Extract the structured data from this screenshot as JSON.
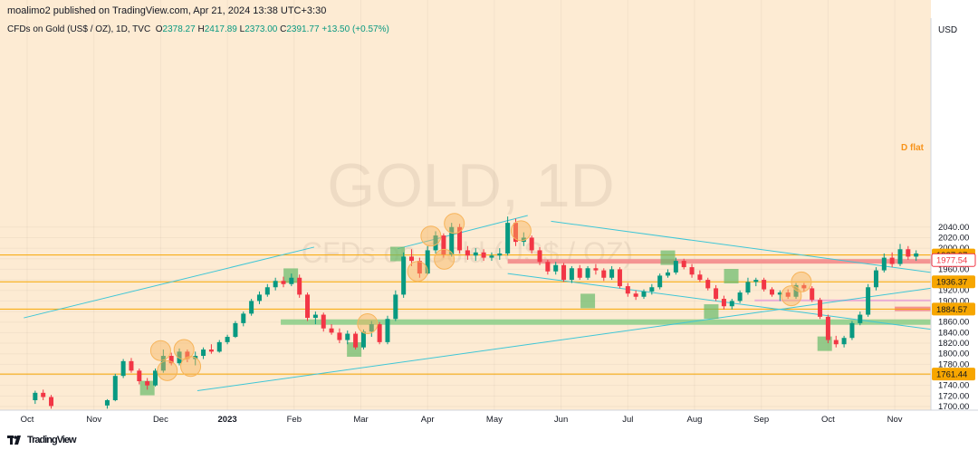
{
  "header": {
    "publisher_line": "moalimo2 published on TradingView.com, Apr 21, 2024 13:38 UTC+3:30",
    "symbol_line": "CFDs on Gold (US$ / OZ), 1D, TVC",
    "ohlc": [
      {
        "key": "O",
        "val": "2378.27"
      },
      {
        "key": "H",
        "val": "2417.89"
      },
      {
        "key": "L",
        "val": "2373.00"
      },
      {
        "key": "C",
        "val": "2391.77"
      }
    ],
    "change": "+13.50 (+0.57%)"
  },
  "currency": "USD",
  "watermark": {
    "line1": "GOLD, 1D",
    "line2": "CFDs on Gold (US$ / OZ)"
  },
  "annotation": "D flat",
  "footer": {
    "brand": "TradingView",
    "logo": "tradingview-logo-icon"
  },
  "colors": {
    "background": "#fdebd3",
    "up": "#089981",
    "down": "#f23645",
    "hline": "#f7a600",
    "channel": "#3fc6d6",
    "zone_red": "#f38b8b",
    "zone_green": "#8fcf8c",
    "marker_orange": "#f7b45a",
    "marker_green": "#66bb6a"
  },
  "chart_data": {
    "type": "candlestick",
    "x_axis_labels": [
      "Oct",
      "Nov",
      "Dec",
      "2023",
      "Feb",
      "Mar",
      "Apr",
      "May",
      "Jun",
      "Jul",
      "Aug",
      "Sep",
      "Oct",
      "Nov"
    ],
    "y_ticks": [
      1700,
      1720,
      1740,
      1760,
      1780,
      1800,
      1820,
      1840,
      1860,
      1880,
      1900,
      1920,
      1940,
      1960,
      1980,
      2000,
      2020,
      2040
    ],
    "ylim": [
      1696,
      2064
    ],
    "grid": true,
    "price_tags": [
      {
        "value": 1987.07,
        "label": "1987.07",
        "style": "orange"
      },
      {
        "value": 1977.54,
        "label": "1977.54",
        "style": "red"
      },
      {
        "value": 1936.37,
        "label": "1936.37",
        "style": "orange"
      },
      {
        "value": 1884.57,
        "label": "1884.57",
        "style": "orange"
      },
      {
        "value": 1761.44,
        "label": "1761.44",
        "style": "orange"
      }
    ],
    "horizontal_lines": [
      1987.07,
      1936.37,
      1884.57,
      1761.44
    ],
    "zones": [
      {
        "from_month": 7.2,
        "to_month": 18.4,
        "value": 1975,
        "color": "red"
      },
      {
        "from_month": 13.0,
        "to_month": 18.4,
        "value": 1885,
        "color": "red"
      },
      {
        "from_month": 10.9,
        "to_month": 17.4,
        "value": 1901,
        "color": "pink"
      },
      {
        "from_month": 3.8,
        "to_month": 18.4,
        "value": 1860,
        "color": "green"
      }
    ],
    "trendlines": [
      {
        "from": [
          -0.05,
          1868
        ],
        "to": [
          4.3,
          2002
        ]
      },
      {
        "from": [
          2.55,
          1730
        ],
        "to": [
          18.0,
          2003
        ]
      },
      {
        "from": [
          5.55,
          1999
        ],
        "to": [
          7.5,
          2062
        ]
      },
      {
        "from": [
          7.85,
          2051
        ],
        "to": [
          17.3,
          1890
        ]
      },
      {
        "from": [
          7.2,
          1952
        ],
        "to": [
          15.6,
          1812
        ]
      }
    ],
    "orange_markers": [
      [
        2.0,
        1806
      ],
      [
        2.35,
        1808
      ],
      [
        2.1,
        1768
      ],
      [
        2.45,
        1776
      ],
      [
        5.1,
        1857
      ],
      [
        6.05,
        2023
      ],
      [
        6.4,
        2047
      ],
      [
        5.85,
        1956
      ],
      [
        6.25,
        1979
      ],
      [
        7.4,
        2033
      ],
      [
        11.6,
        1936
      ],
      [
        11.45,
        1910
      ]
    ],
    "green_markers": [
      [
        1.8,
        1735
      ],
      [
        5.55,
        1989
      ],
      [
        3.95,
        1948
      ],
      [
        4.9,
        1808
      ],
      [
        8.4,
        1900
      ],
      [
        9.6,
        1982
      ],
      [
        10.55,
        1947
      ],
      [
        10.25,
        1880
      ],
      [
        11.95,
        1819
      ]
    ],
    "candles": [
      {
        "t": 0.12,
        "o": 1712,
        "h": 1730,
        "l": 1705,
        "c": 1726
      },
      {
        "t": 0.24,
        "o": 1726,
        "h": 1732,
        "l": 1712,
        "c": 1718
      },
      {
        "t": 0.36,
        "o": 1718,
        "h": 1722,
        "l": 1696,
        "c": 1701
      },
      {
        "t": 1.2,
        "o": 1702,
        "h": 1714,
        "l": 1696,
        "c": 1712
      },
      {
        "t": 1.32,
        "o": 1712,
        "h": 1762,
        "l": 1710,
        "c": 1758
      },
      {
        "t": 1.44,
        "o": 1758,
        "h": 1790,
        "l": 1754,
        "c": 1786
      },
      {
        "t": 1.56,
        "o": 1786,
        "h": 1792,
        "l": 1764,
        "c": 1768
      },
      {
        "t": 1.68,
        "o": 1768,
        "h": 1772,
        "l": 1742,
        "c": 1748
      },
      {
        "t": 1.8,
        "o": 1748,
        "h": 1754,
        "l": 1732,
        "c": 1740
      },
      {
        "t": 1.92,
        "o": 1740,
        "h": 1772,
        "l": 1738,
        "c": 1768
      },
      {
        "t": 2.04,
        "o": 1768,
        "h": 1808,
        "l": 1764,
        "c": 1796
      },
      {
        "t": 2.16,
        "o": 1796,
        "h": 1802,
        "l": 1778,
        "c": 1782
      },
      {
        "t": 2.28,
        "o": 1782,
        "h": 1810,
        "l": 1778,
        "c": 1804
      },
      {
        "t": 2.4,
        "o": 1804,
        "h": 1808,
        "l": 1784,
        "c": 1790
      },
      {
        "t": 2.52,
        "o": 1790,
        "h": 1804,
        "l": 1778,
        "c": 1796
      },
      {
        "t": 2.64,
        "o": 1796,
        "h": 1812,
        "l": 1790,
        "c": 1808
      },
      {
        "t": 2.76,
        "o": 1808,
        "h": 1818,
        "l": 1800,
        "c": 1804
      },
      {
        "t": 2.88,
        "o": 1804,
        "h": 1826,
        "l": 1802,
        "c": 1822
      },
      {
        "t": 3.0,
        "o": 1822,
        "h": 1836,
        "l": 1818,
        "c": 1832
      },
      {
        "t": 3.12,
        "o": 1832,
        "h": 1862,
        "l": 1830,
        "c": 1858
      },
      {
        "t": 3.24,
        "o": 1858,
        "h": 1880,
        "l": 1852,
        "c": 1876
      },
      {
        "t": 3.36,
        "o": 1876,
        "h": 1904,
        "l": 1872,
        "c": 1900
      },
      {
        "t": 3.48,
        "o": 1900,
        "h": 1918,
        "l": 1894,
        "c": 1912
      },
      {
        "t": 3.6,
        "o": 1912,
        "h": 1932,
        "l": 1908,
        "c": 1926
      },
      {
        "t": 3.72,
        "o": 1926,
        "h": 1944,
        "l": 1920,
        "c": 1938
      },
      {
        "t": 3.84,
        "o": 1938,
        "h": 1946,
        "l": 1926,
        "c": 1932
      },
      {
        "t": 3.96,
        "o": 1932,
        "h": 1952,
        "l": 1928,
        "c": 1944
      },
      {
        "t": 4.08,
        "o": 1944,
        "h": 1950,
        "l": 1906,
        "c": 1912
      },
      {
        "t": 4.2,
        "o": 1912,
        "h": 1916,
        "l": 1862,
        "c": 1868
      },
      {
        "t": 4.32,
        "o": 1868,
        "h": 1880,
        "l": 1856,
        "c": 1874
      },
      {
        "t": 4.44,
        "o": 1874,
        "h": 1878,
        "l": 1842,
        "c": 1848
      },
      {
        "t": 4.56,
        "o": 1848,
        "h": 1856,
        "l": 1836,
        "c": 1840
      },
      {
        "t": 4.68,
        "o": 1840,
        "h": 1848,
        "l": 1820,
        "c": 1826
      },
      {
        "t": 4.8,
        "o": 1826,
        "h": 1844,
        "l": 1818,
        "c": 1838
      },
      {
        "t": 4.92,
        "o": 1838,
        "h": 1842,
        "l": 1808,
        "c": 1812
      },
      {
        "t": 5.04,
        "o": 1812,
        "h": 1846,
        "l": 1808,
        "c": 1842
      },
      {
        "t": 5.16,
        "o": 1842,
        "h": 1862,
        "l": 1832,
        "c": 1856
      },
      {
        "t": 5.28,
        "o": 1856,
        "h": 1860,
        "l": 1818,
        "c": 1822
      },
      {
        "t": 5.4,
        "o": 1822,
        "h": 1872,
        "l": 1818,
        "c": 1866
      },
      {
        "t": 5.52,
        "o": 1866,
        "h": 1920,
        "l": 1862,
        "c": 1912
      },
      {
        "t": 5.64,
        "o": 1912,
        "h": 1992,
        "l": 1906,
        "c": 1984
      },
      {
        "t": 5.76,
        "o": 1984,
        "h": 1998,
        "l": 1966,
        "c": 1976
      },
      {
        "t": 5.88,
        "o": 1976,
        "h": 1982,
        "l": 1944,
        "c": 1952
      },
      {
        "t": 6.0,
        "o": 1952,
        "h": 2004,
        "l": 1950,
        "c": 1996
      },
      {
        "t": 6.12,
        "o": 1996,
        "h": 2032,
        "l": 1990,
        "c": 2024
      },
      {
        "t": 6.24,
        "o": 2024,
        "h": 2028,
        "l": 1982,
        "c": 1988
      },
      {
        "t": 6.36,
        "o": 1988,
        "h": 2048,
        "l": 1984,
        "c": 2040
      },
      {
        "t": 6.48,
        "o": 2040,
        "h": 2046,
        "l": 1990,
        "c": 1996
      },
      {
        "t": 6.6,
        "o": 1996,
        "h": 2004,
        "l": 1978,
        "c": 1986
      },
      {
        "t": 6.72,
        "o": 1986,
        "h": 2000,
        "l": 1976,
        "c": 1992
      },
      {
        "t": 6.84,
        "o": 1992,
        "h": 1998,
        "l": 1976,
        "c": 1982
      },
      {
        "t": 6.96,
        "o": 1982,
        "h": 1992,
        "l": 1976,
        "c": 1986
      },
      {
        "t": 7.08,
        "o": 1986,
        "h": 2000,
        "l": 1978,
        "c": 1990
      },
      {
        "t": 7.2,
        "o": 1990,
        "h": 2060,
        "l": 1986,
        "c": 2048
      },
      {
        "t": 7.32,
        "o": 2048,
        "h": 2056,
        "l": 2004,
        "c": 2012
      },
      {
        "t": 7.44,
        "o": 2012,
        "h": 2030,
        "l": 2004,
        "c": 2020
      },
      {
        "t": 7.56,
        "o": 2020,
        "h": 2024,
        "l": 1990,
        "c": 1996
      },
      {
        "t": 7.68,
        "o": 1996,
        "h": 2002,
        "l": 1968,
        "c": 1974
      },
      {
        "t": 7.8,
        "o": 1974,
        "h": 1978,
        "l": 1950,
        "c": 1956
      },
      {
        "t": 7.92,
        "o": 1956,
        "h": 1974,
        "l": 1950,
        "c": 1968
      },
      {
        "t": 8.04,
        "o": 1968,
        "h": 1972,
        "l": 1936,
        "c": 1940
      },
      {
        "t": 8.16,
        "o": 1940,
        "h": 1966,
        "l": 1934,
        "c": 1962
      },
      {
        "t": 8.28,
        "o": 1962,
        "h": 1968,
        "l": 1940,
        "c": 1944
      },
      {
        "t": 8.4,
        "o": 1944,
        "h": 1966,
        "l": 1940,
        "c": 1962
      },
      {
        "t": 8.52,
        "o": 1962,
        "h": 1970,
        "l": 1950,
        "c": 1958
      },
      {
        "t": 8.64,
        "o": 1958,
        "h": 1962,
        "l": 1938,
        "c": 1944
      },
      {
        "t": 8.76,
        "o": 1944,
        "h": 1966,
        "l": 1940,
        "c": 1960
      },
      {
        "t": 8.88,
        "o": 1960,
        "h": 1964,
        "l": 1924,
        "c": 1928
      },
      {
        "t": 9.0,
        "o": 1928,
        "h": 1934,
        "l": 1908,
        "c": 1914
      },
      {
        "t": 9.12,
        "o": 1914,
        "h": 1920,
        "l": 1902,
        "c": 1908
      },
      {
        "t": 9.24,
        "o": 1908,
        "h": 1922,
        "l": 1904,
        "c": 1918
      },
      {
        "t": 9.36,
        "o": 1918,
        "h": 1932,
        "l": 1912,
        "c": 1926
      },
      {
        "t": 9.48,
        "o": 1926,
        "h": 1952,
        "l": 1922,
        "c": 1948
      },
      {
        "t": 9.6,
        "o": 1948,
        "h": 1960,
        "l": 1944,
        "c": 1954
      },
      {
        "t": 9.72,
        "o": 1954,
        "h": 1982,
        "l": 1950,
        "c": 1976
      },
      {
        "t": 9.84,
        "o": 1976,
        "h": 1980,
        "l": 1960,
        "c": 1964
      },
      {
        "t": 9.96,
        "o": 1964,
        "h": 1970,
        "l": 1944,
        "c": 1950
      },
      {
        "t": 10.08,
        "o": 1950,
        "h": 1958,
        "l": 1936,
        "c": 1940
      },
      {
        "t": 10.2,
        "o": 1940,
        "h": 1944,
        "l": 1920,
        "c": 1924
      },
      {
        "t": 10.32,
        "o": 1924,
        "h": 1930,
        "l": 1900,
        "c": 1904
      },
      {
        "t": 10.44,
        "o": 1904,
        "h": 1910,
        "l": 1884,
        "c": 1890
      },
      {
        "t": 10.56,
        "o": 1890,
        "h": 1904,
        "l": 1884,
        "c": 1900
      },
      {
        "t": 10.68,
        "o": 1900,
        "h": 1920,
        "l": 1896,
        "c": 1916
      },
      {
        "t": 10.8,
        "o": 1916,
        "h": 1944,
        "l": 1912,
        "c": 1936
      },
      {
        "t": 10.92,
        "o": 1936,
        "h": 1944,
        "l": 1928,
        "c": 1940
      },
      {
        "t": 11.04,
        "o": 1940,
        "h": 1944,
        "l": 1918,
        "c": 1922
      },
      {
        "t": 11.16,
        "o": 1922,
        "h": 1926,
        "l": 1908,
        "c": 1912
      },
      {
        "t": 11.28,
        "o": 1912,
        "h": 1920,
        "l": 1900,
        "c": 1916
      },
      {
        "t": 11.4,
        "o": 1916,
        "h": 1922,
        "l": 1904,
        "c": 1908
      },
      {
        "t": 11.52,
        "o": 1908,
        "h": 1934,
        "l": 1904,
        "c": 1930
      },
      {
        "t": 11.64,
        "o": 1930,
        "h": 1934,
        "l": 1918,
        "c": 1924
      },
      {
        "t": 11.76,
        "o": 1924,
        "h": 1928,
        "l": 1898,
        "c": 1902
      },
      {
        "t": 11.88,
        "o": 1902,
        "h": 1906,
        "l": 1866,
        "c": 1870
      },
      {
        "t": 12.0,
        "o": 1870,
        "h": 1874,
        "l": 1820,
        "c": 1826
      },
      {
        "t": 12.12,
        "o": 1826,
        "h": 1834,
        "l": 1812,
        "c": 1818
      },
      {
        "t": 12.24,
        "o": 1818,
        "h": 1834,
        "l": 1812,
        "c": 1830
      },
      {
        "t": 12.36,
        "o": 1830,
        "h": 1862,
        "l": 1826,
        "c": 1858
      },
      {
        "t": 12.48,
        "o": 1858,
        "h": 1880,
        "l": 1854,
        "c": 1874
      },
      {
        "t": 12.6,
        "o": 1874,
        "h": 1932,
        "l": 1870,
        "c": 1926
      },
      {
        "t": 12.72,
        "o": 1926,
        "h": 1964,
        "l": 1920,
        "c": 1958
      },
      {
        "t": 12.84,
        "o": 1958,
        "h": 1990,
        "l": 1954,
        "c": 1982
      },
      {
        "t": 12.96,
        "o": 1982,
        "h": 1992,
        "l": 1964,
        "c": 1970
      },
      {
        "t": 13.08,
        "o": 1970,
        "h": 2008,
        "l": 1966,
        "c": 1998
      },
      {
        "t": 13.2,
        "o": 1998,
        "h": 2004,
        "l": 1978,
        "c": 1984
      },
      {
        "t": 13.32,
        "o": 1984,
        "h": 1996,
        "l": 1976,
        "c": 1990
      }
    ]
  }
}
